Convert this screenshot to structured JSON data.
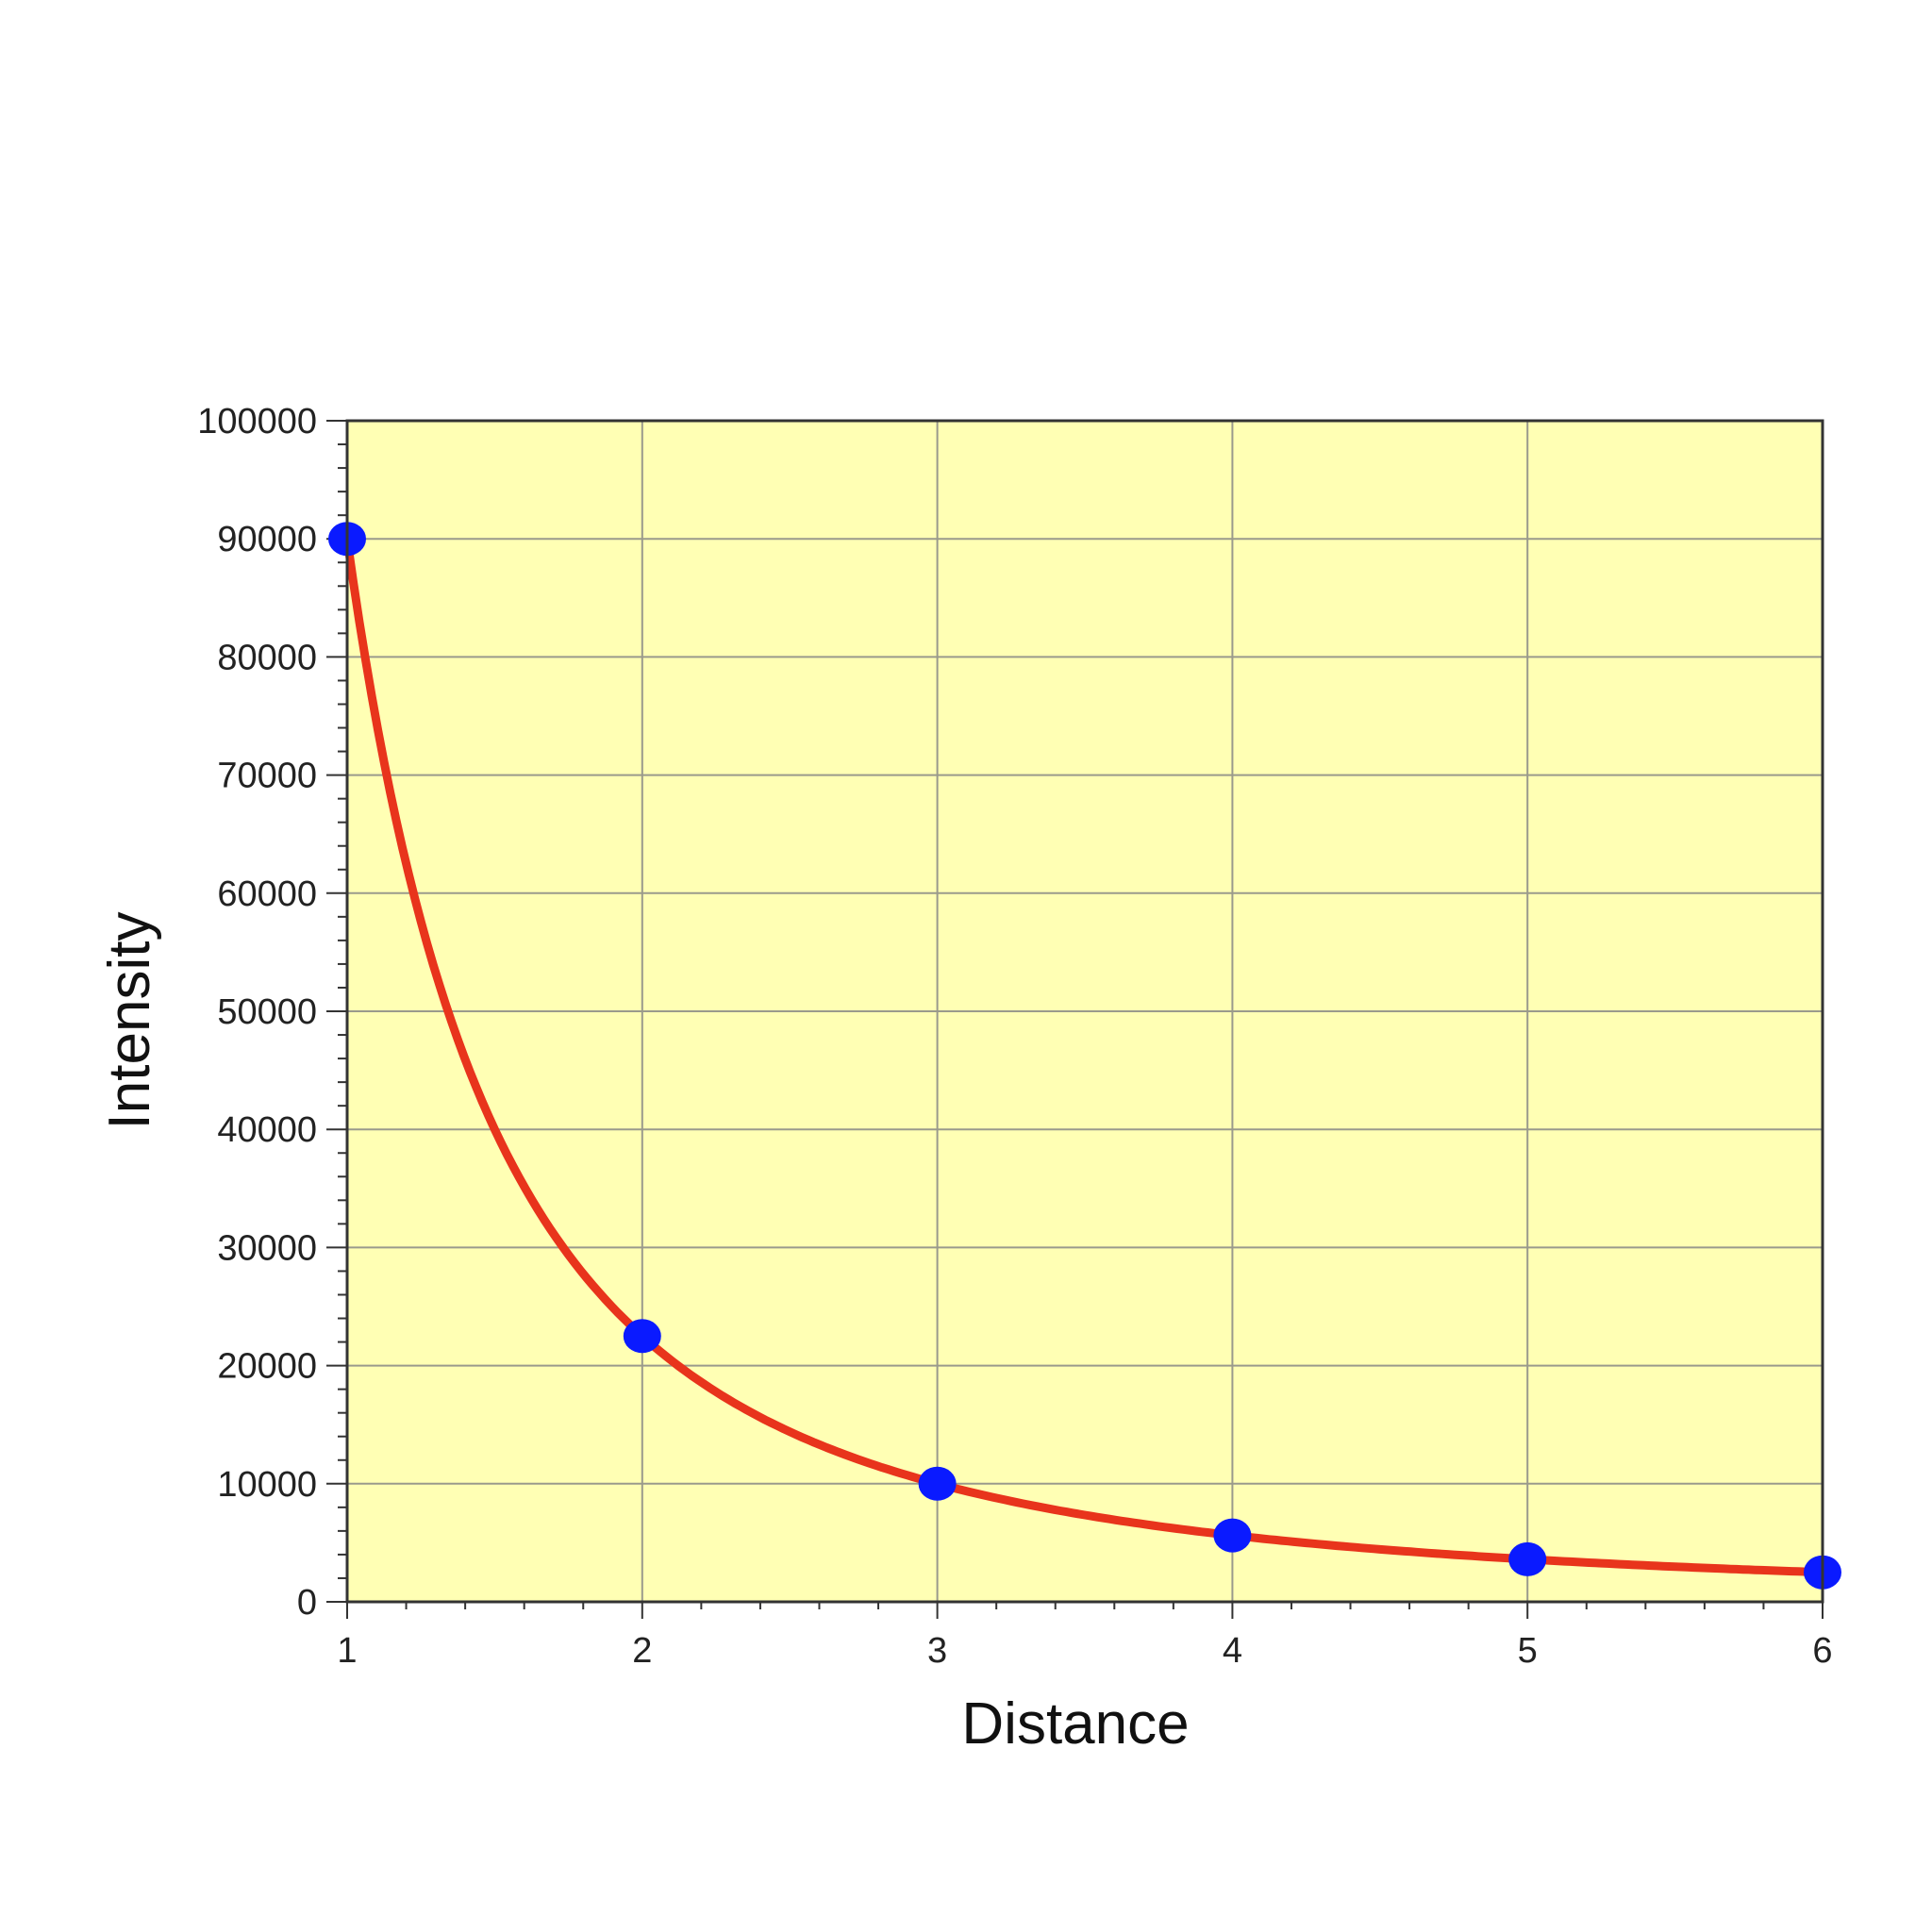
{
  "chart_data": {
    "type": "line",
    "title": "",
    "xlabel": "Distance",
    "ylabel": "Intensity",
    "xlim": [
      1,
      6
    ],
    "ylim": [
      0,
      100000
    ],
    "x_ticks": [
      1,
      2,
      3,
      4,
      5,
      6
    ],
    "y_ticks": [
      0,
      10000,
      20000,
      30000,
      40000,
      50000,
      60000,
      70000,
      80000,
      90000,
      100000
    ],
    "grid": true,
    "series": [
      {
        "kind": "curve",
        "relation": "inverse-square",
        "x_range": [
          1,
          6
        ],
        "color": "#e8341c"
      },
      {
        "kind": "points",
        "x": [
          1,
          2,
          3,
          4,
          5,
          6
        ],
        "y": [
          90000,
          22500,
          10000,
          5625,
          3600,
          2500
        ],
        "color": "#0a1aff"
      }
    ],
    "colors": {
      "plot_background": "#ffffb4",
      "grid": "#9a9a8c",
      "axis": "#333333"
    }
  }
}
